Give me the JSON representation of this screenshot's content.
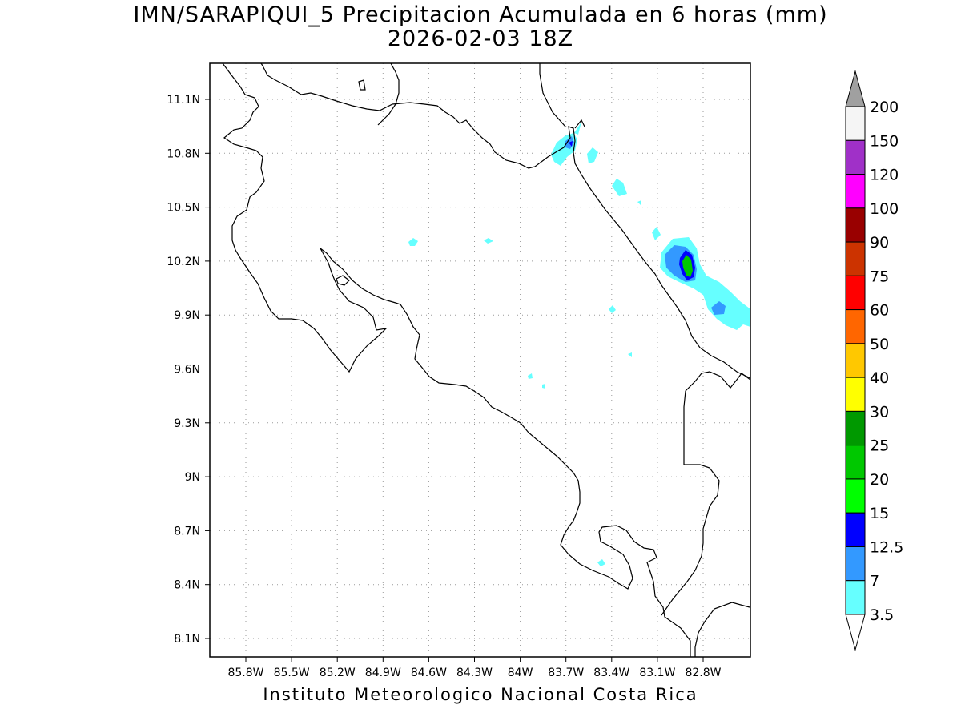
{
  "title": {
    "line1": "IMN/SARAPIQUI_5 Precipitacion Acumulada en 6 horas (mm)",
    "line2": "2026-02-03 18Z"
  },
  "footer": "Instituto Meteorologico Nacional Costa Rica",
  "map": {
    "lon_labels": [
      "85.8W",
      "85.5W",
      "85.2W",
      "84.9W",
      "84.6W",
      "84.3W",
      "84W",
      "83.7W",
      "83.4W",
      "83.1W",
      "82.8W"
    ],
    "lat_labels": [
      "11.1N",
      "10.8N",
      "10.5N",
      "10.2N",
      "9.9N",
      "9.6N",
      "9.3N",
      "9N",
      "8.7N",
      "8.4N",
      "8.1N"
    ],
    "colorbar": {
      "labels": [
        "200",
        "150",
        "120",
        "100",
        "90",
        "75",
        "60",
        "50",
        "40",
        "30",
        "25",
        "20",
        "15",
        "12.5",
        "7",
        "3.5"
      ],
      "colors": [
        "#f5f5f5",
        "#a030c8",
        "#ff00ff",
        "#990000",
        "#cc3300",
        "#ff0000",
        "#ff6600",
        "#ffc800",
        "#ffff00",
        "#009900",
        "#00c800",
        "#00ff00",
        "#0000ff",
        "#3399ff",
        "#66ffff"
      ],
      "top_arrow_color": "#a0a0a0",
      "bottom_arrow_color": "#ffffff"
    }
  }
}
